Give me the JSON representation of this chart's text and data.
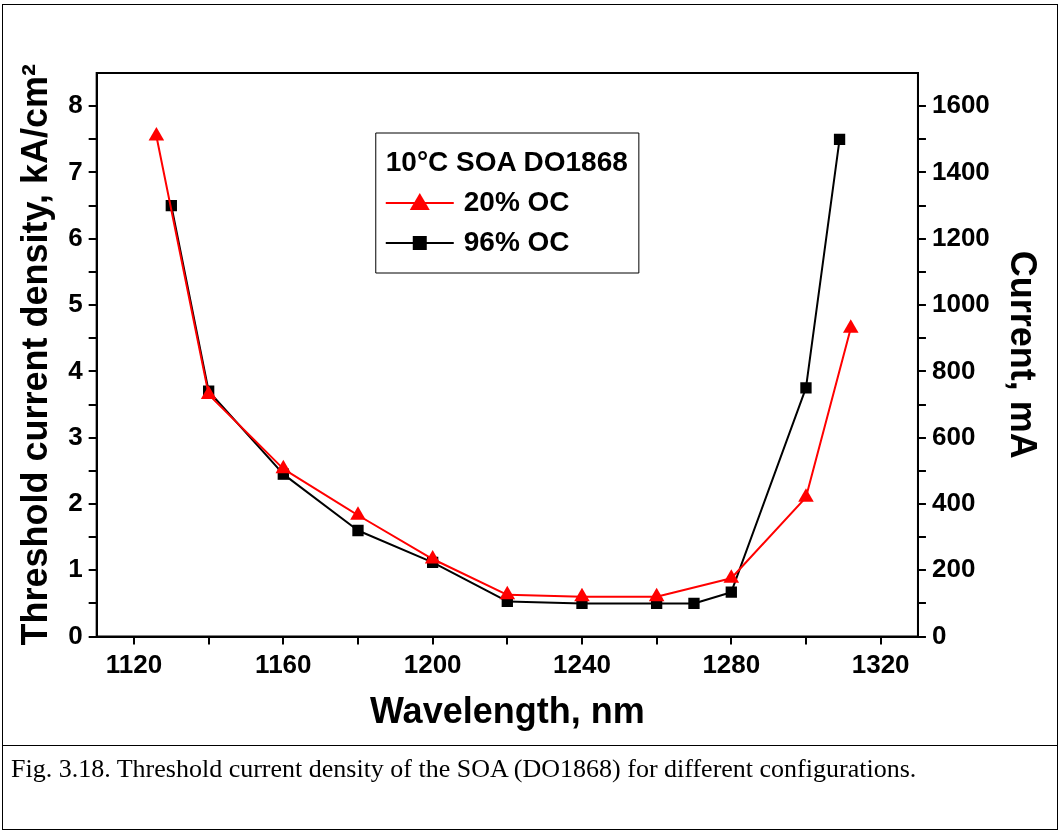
{
  "chart_data": {
    "type": "line",
    "xlabel": "Wavelength, nm",
    "ylabel": "Threshold current density, kA/cm²",
    "y2label": "Current, mA",
    "legend_title": "10°C SOA DO1868",
    "legend": "top",
    "xlim": [
      1110,
      1330
    ],
    "xticks": [
      1120,
      {
        "value": 1140,
        "label": null
      },
      1160,
      {
        "value": 1180,
        "label": null
      },
      1200,
      {
        "value": 1220,
        "label": null
      },
      1240,
      {
        "value": 1260,
        "label": null
      },
      1280,
      {
        "value": 1300,
        "label": null
      },
      1320
    ],
    "ylim": [
      0,
      8.5
    ],
    "yticks": [
      0,
      {
        "value": 0.5,
        "label": null
      },
      1,
      {
        "value": 1.5,
        "label": null
      },
      2,
      {
        "value": 2.5,
        "label": null
      },
      3,
      {
        "value": 3.5,
        "label": null
      },
      4,
      {
        "value": 4.5,
        "label": null
      },
      5,
      {
        "value": 5.5,
        "label": null
      },
      6,
      {
        "value": 6.5,
        "label": null
      },
      7,
      {
        "value": 7.5,
        "label": null
      },
      8
    ],
    "y2lim": [
      0,
      1700
    ],
    "y2ticks": [
      0,
      {
        "value": 100,
        "label": null
      },
      200,
      {
        "value": 300,
        "label": null
      },
      400,
      {
        "value": 500,
        "label": null
      },
      600,
      {
        "value": 700,
        "label": null
      },
      800,
      {
        "value": 900,
        "label": null
      },
      1000,
      {
        "value": 1100,
        "label": null
      },
      1200,
      {
        "value": 1300,
        "label": null
      },
      1400,
      {
        "value": 1500,
        "label": null
      },
      1600
    ],
    "grid": false,
    "line_style": "solid",
    "series": [
      {
        "name": "20% OC",
        "color": "#ff0000",
        "marker": "triangle",
        "x": [
          1126,
          1140,
          1160,
          1180,
          1200,
          1220,
          1240,
          1260,
          1280,
          1300,
          1312
        ],
        "values": [
          7.55,
          3.65,
          2.53,
          1.83,
          1.17,
          0.63,
          0.6,
          0.6,
          0.88,
          2.1,
          4.65
        ]
      },
      {
        "name": "96% OC",
        "color": "#000000",
        "marker": "square",
        "x": [
          1130,
          1140,
          1160,
          1180,
          1200,
          1220,
          1240,
          1260,
          1270,
          1280,
          1300,
          1309
        ],
        "values": [
          6.5,
          3.7,
          2.45,
          1.6,
          1.12,
          0.53,
          0.5,
          0.5,
          0.5,
          0.67,
          3.75,
          7.5
        ]
      }
    ],
    "annotations": [
      "Fig. 3.18. Threshold current density of the SOA (DO1868) for different configurations."
    ]
  }
}
